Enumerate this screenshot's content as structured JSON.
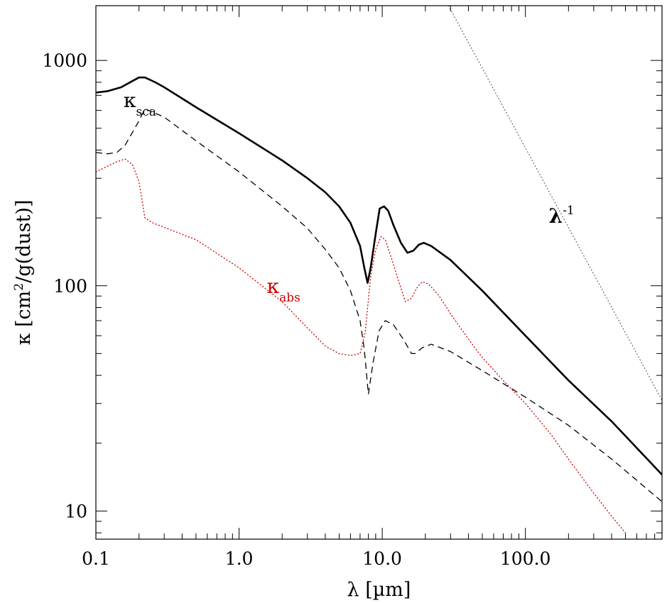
{
  "chart_data": {
    "type": "line",
    "xscale": "log",
    "yscale": "log",
    "xlabel": "λ [µm]",
    "ylabel": "κ [cm²/g(dust)]",
    "ylabel_parts": {
      "pre": "κ [cm",
      "sup": "2",
      "post": "/g(dust)]"
    },
    "xlim": [
      0.1,
      900
    ],
    "ylim": [
      7.5,
      1750
    ],
    "xticks": [
      {
        "value": 0.1,
        "label": "0.1"
      },
      {
        "value": 1.0,
        "label": "1.0"
      },
      {
        "value": 10.0,
        "label": "10.0"
      },
      {
        "value": 100.0,
        "label": "100.0"
      }
    ],
    "yticks": [
      {
        "value": 10,
        "label": "10"
      },
      {
        "value": 100,
        "label": "100"
      },
      {
        "value": 1000,
        "label": "1000"
      }
    ],
    "series": [
      {
        "style": "solid",
        "color": "#000000",
        "points": [
          [
            0.1,
            720
          ],
          [
            0.12,
            730
          ],
          [
            0.15,
            760
          ],
          [
            0.18,
            810
          ],
          [
            0.2,
            840
          ],
          [
            0.22,
            840
          ],
          [
            0.26,
            800
          ],
          [
            0.3,
            760
          ],
          [
            0.5,
            620
          ],
          [
            1.0,
            475
          ],
          [
            2.0,
            360
          ],
          [
            3.0,
            300
          ],
          [
            4.0,
            260
          ],
          [
            5.0,
            225
          ],
          [
            6.0,
            190
          ],
          [
            7.0,
            150
          ],
          [
            7.5,
            120
          ],
          [
            7.9,
            103
          ],
          [
            8.3,
            120
          ],
          [
            9.0,
            170
          ],
          [
            9.6,
            220
          ],
          [
            10.3,
            225
          ],
          [
            11.0,
            215
          ],
          [
            12.0,
            185
          ],
          [
            13.5,
            155
          ],
          [
            15.0,
            140
          ],
          [
            16.5,
            143
          ],
          [
            18.0,
            152
          ],
          [
            19.5,
            155
          ],
          [
            22.0,
            150
          ],
          [
            30.0,
            130
          ],
          [
            50.0,
            95
          ],
          [
            100.0,
            60
          ],
          [
            200.0,
            38
          ],
          [
            400.0,
            25
          ],
          [
            900.0,
            14.5
          ]
        ]
      },
      {
        "name": "κsca",
        "style": "dashed",
        "color": "#000000",
        "points": [
          [
            0.1,
            390
          ],
          [
            0.12,
            385
          ],
          [
            0.14,
            390
          ],
          [
            0.16,
            420
          ],
          [
            0.18,
            480
          ],
          [
            0.2,
            540
          ],
          [
            0.22,
            610
          ],
          [
            0.3,
            560
          ],
          [
            0.5,
            440
          ],
          [
            1.0,
            320
          ],
          [
            2.0,
            225
          ],
          [
            3.0,
            180
          ],
          [
            4.0,
            145
          ],
          [
            5.0,
            120
          ],
          [
            6.0,
            95
          ],
          [
            7.0,
            70
          ],
          [
            7.5,
            52
          ],
          [
            8.0,
            33
          ],
          [
            8.6,
            45
          ],
          [
            9.5,
            63
          ],
          [
            10.5,
            70
          ],
          [
            12.0,
            67
          ],
          [
            14.0,
            58
          ],
          [
            16.0,
            50
          ],
          [
            17.0,
            50
          ],
          [
            19.0,
            53
          ],
          [
            22.0,
            55
          ],
          [
            30.0,
            51
          ],
          [
            50.0,
            42
          ],
          [
            100.0,
            32
          ],
          [
            200.0,
            24
          ],
          [
            400.0,
            17
          ],
          [
            900.0,
            11
          ]
        ]
      },
      {
        "name": "κabs",
        "style": "dotted",
        "color": "#cc0000",
        "points": [
          [
            0.1,
            320
          ],
          [
            0.14,
            355
          ],
          [
            0.16,
            365
          ],
          [
            0.18,
            345
          ],
          [
            0.2,
            290
          ],
          [
            0.22,
            200
          ],
          [
            0.25,
            190
          ],
          [
            0.5,
            160
          ],
          [
            1.0,
            120
          ],
          [
            2.0,
            85
          ],
          [
            3.0,
            65
          ],
          [
            4.0,
            54
          ],
          [
            5.0,
            50
          ],
          [
            6.0,
            49
          ],
          [
            7.0,
            50
          ],
          [
            7.6,
            62
          ],
          [
            8.3,
            110
          ],
          [
            9.0,
            145
          ],
          [
            9.8,
            165
          ],
          [
            10.5,
            160
          ],
          [
            11.5,
            135
          ],
          [
            13.0,
            105
          ],
          [
            14.5,
            85
          ],
          [
            16.0,
            88
          ],
          [
            17.5,
            98
          ],
          [
            19.0,
            104
          ],
          [
            21.0,
            102
          ],
          [
            25.0,
            90
          ],
          [
            30.0,
            75
          ],
          [
            40.0,
            58
          ],
          [
            50.0,
            48
          ],
          [
            70.0,
            38
          ],
          [
            100.0,
            30
          ],
          [
            150.0,
            22
          ],
          [
            200.0,
            17
          ],
          [
            300.0,
            12
          ],
          [
            400.0,
            9.5
          ],
          [
            500.0,
            8
          ]
        ]
      },
      {
        "name": "λ-1",
        "style": "dotted-fine",
        "color": "#555555",
        "points": [
          [
            29.0,
            1750
          ],
          [
            900.0,
            31
          ]
        ]
      }
    ],
    "annotations": [
      {
        "id": "sca",
        "main": "κ",
        "sub": "sca",
        "sup": "",
        "x": 0.22,
        "y": 620,
        "color": "#000000"
      },
      {
        "id": "abs",
        "main": "κ",
        "sub": "abs",
        "sup": "",
        "x": 2.2,
        "y": 93,
        "color": "#cc0000"
      },
      {
        "id": "lam",
        "main": "λ",
        "sub": "",
        "sup": "-1",
        "x": 205,
        "y": 190,
        "color": "#000000"
      }
    ],
    "grid": false,
    "legend": "none"
  }
}
